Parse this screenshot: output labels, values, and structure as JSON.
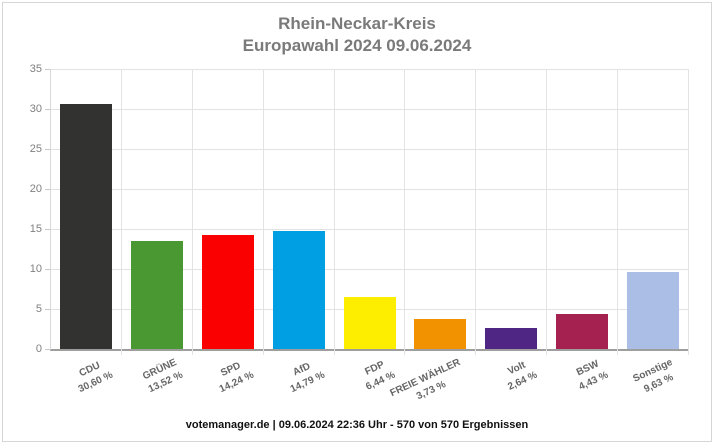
{
  "title": {
    "line1": "Rhein-Neckar-Kreis",
    "line2": "Europawahl 2024 09.06.2024"
  },
  "footer": "votemanager.de | 09.06.2024 22:36 Uhr - 570 von 570 Ergebnissen",
  "chart_data": {
    "type": "bar",
    "title": "Rhein-Neckar-Kreis",
    "subtitle": "Europawahl 2024 09.06.2024",
    "categories": [
      "CDU",
      "GRÜNE",
      "SPD",
      "AfD",
      "FDP",
      "FREIE WÄHLER",
      "Volt",
      "BSW",
      "Sonstige"
    ],
    "values": [
      30.6,
      13.52,
      14.24,
      14.79,
      6.44,
      3.73,
      2.64,
      4.43,
      9.63
    ],
    "value_labels": [
      "30,60 %",
      "13,52 %",
      "14,24 %",
      "14,79 %",
      "6,44 %",
      "3,73 %",
      "2,64 %",
      "4,43 %",
      "9,63 %"
    ],
    "bar_colors": [
      "#323230",
      "#4a9831",
      "#fb0000",
      "#009fe3",
      "#fdee00",
      "#f39200",
      "#4f2683",
      "#a52250",
      "#abbfe6"
    ],
    "xlabel": "",
    "ylabel": "",
    "ylim": [
      0,
      35
    ],
    "ytick_step": 5,
    "grid": true,
    "legend": "none"
  }
}
